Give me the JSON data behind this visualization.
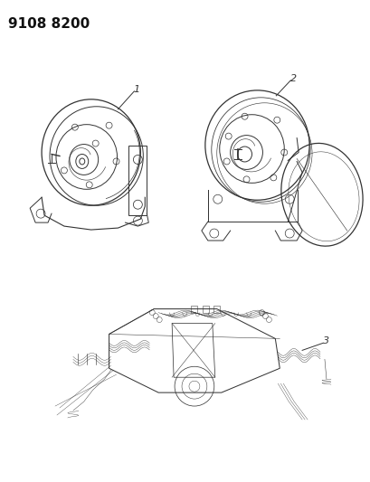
{
  "title_text": "9108 8200",
  "bg_color": "#ffffff",
  "line_color": "#333333",
  "lw": 0.7,
  "label_fontsize": 8,
  "title_fontsize": 11
}
